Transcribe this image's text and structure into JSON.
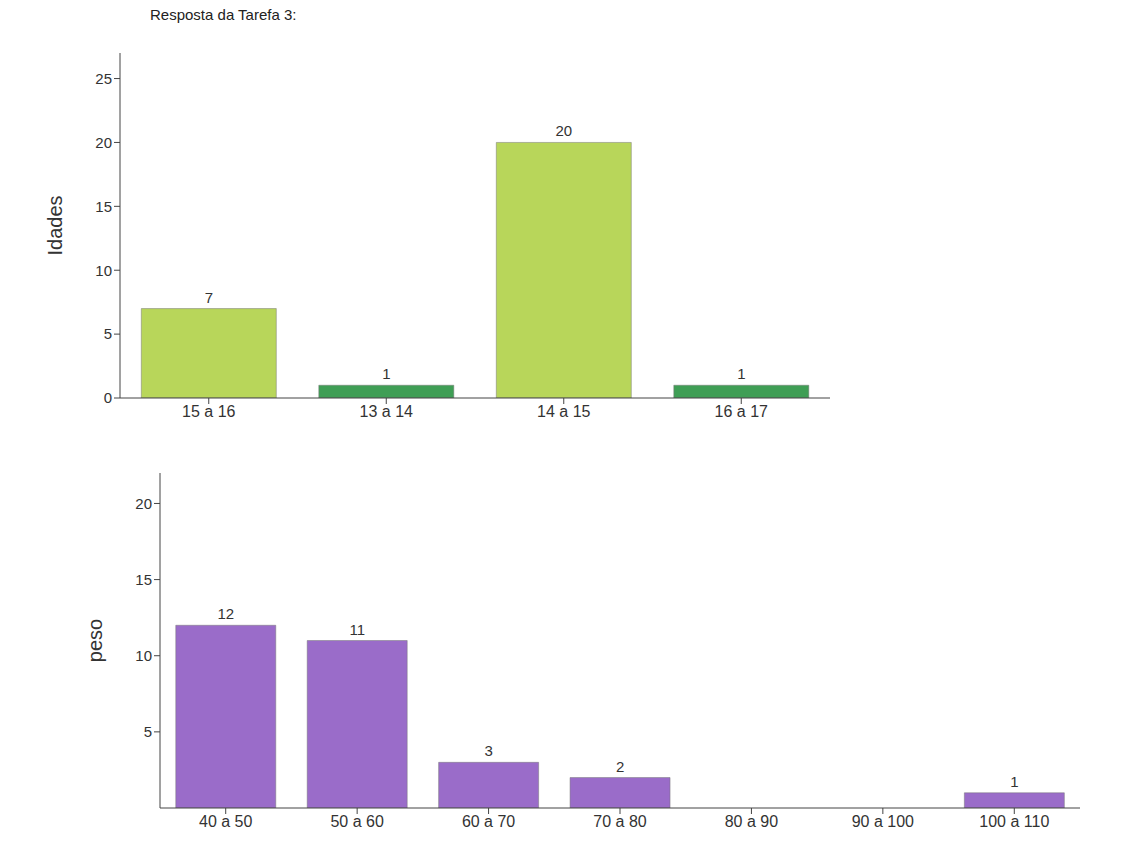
{
  "title": "Resposta da Tarefa 3:",
  "chart_data": [
    {
      "type": "bar",
      "y_label": "Idades",
      "categories": [
        "15 a 16",
        "13 a 14",
        "14 a 15",
        "16 a 17"
      ],
      "values": [
        7,
        1,
        20,
        1
      ],
      "colors": [
        "#b8d65a",
        "#3f9e55",
        "#b8d65a",
        "#3f9e55"
      ],
      "ylim": [
        0,
        27
      ],
      "yticks": [
        0,
        5,
        10,
        15,
        20,
        25
      ],
      "grid": false,
      "data_labels": true
    },
    {
      "type": "bar",
      "y_label": "peso",
      "categories": [
        "40 a 50",
        "50 a 60",
        "60 a 70",
        "70 a 80",
        "80 a 90",
        "90 a 100",
        "100 a 110"
      ],
      "values": [
        12,
        11,
        3,
        2,
        0,
        0,
        1
      ],
      "value_labels": [
        "12",
        "11",
        "3",
        "2",
        null,
        null,
        "1"
      ],
      "color": "#9a6cc9",
      "ylim": [
        0,
        22
      ],
      "yticks": [
        5,
        10,
        15,
        20
      ],
      "grid": false,
      "data_labels": true
    }
  ]
}
